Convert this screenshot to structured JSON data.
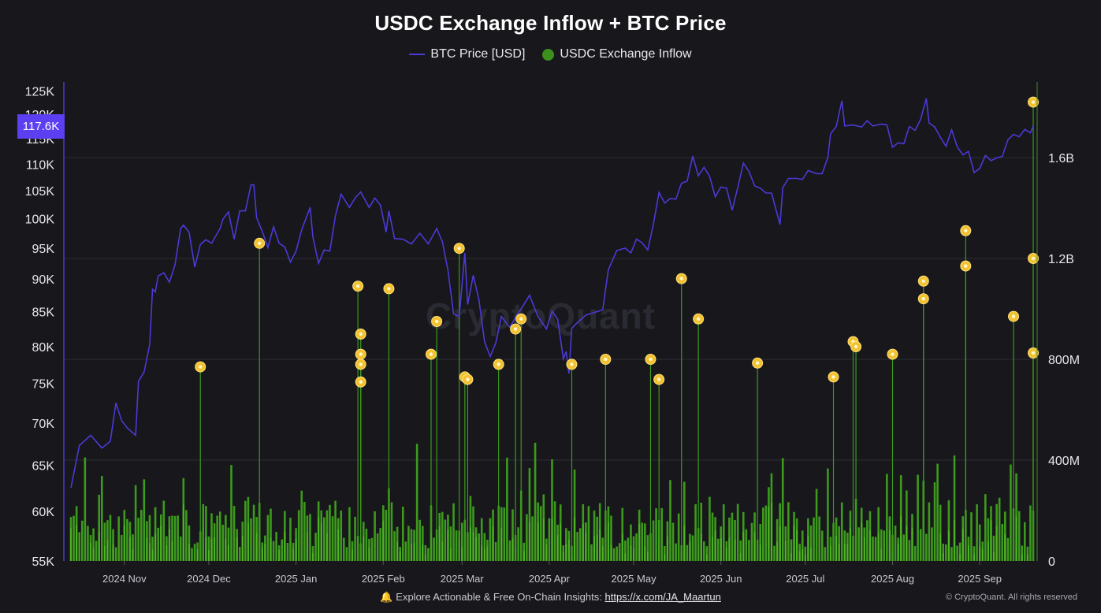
{
  "chart_data": {
    "type": "bar+line",
    "title": "USDC Exchange Inflow + BTC Price",
    "legend": [
      {
        "label": "BTC Price [USD]",
        "marker": "line",
        "color": "#4b3ad6"
      },
      {
        "label": "USDC Exchange Inflow",
        "marker": "dot",
        "color": "#3d8f1e"
      }
    ],
    "left_axis": {
      "ticks": [
        55000,
        60000,
        65000,
        70000,
        75000,
        80000,
        85000,
        90000,
        95000,
        100000,
        105000,
        110000,
        115000,
        120000,
        125000
      ],
      "tick_labels": [
        "55K",
        "60K",
        "65K",
        "70K",
        "75K",
        "80K",
        "85K",
        "90K",
        "95K",
        "100K",
        "105K",
        "110K",
        "115K",
        "120K",
        "125K"
      ],
      "scale": "log",
      "range": [
        55000,
        127000
      ]
    },
    "right_axis": {
      "ticks": [
        0,
        400000000,
        800000000,
        1200000000,
        1600000000
      ],
      "tick_labels": [
        "0",
        "400M",
        "800M",
        "1.2B",
        "1.6B"
      ],
      "range": [
        0,
        1900000000
      ]
    },
    "x_axis": {
      "start": "2024-10-13",
      "end": "2025-09-20",
      "month_ticks": [
        {
          "date": "2024-11-01",
          "label": "2024 Nov"
        },
        {
          "date": "2024-12-01",
          "label": "2024 Dec"
        },
        {
          "date": "2025-01-01",
          "label": "2025 Jan"
        },
        {
          "date": "2025-02-01",
          "label": "2025 Feb"
        },
        {
          "date": "2025-03-01",
          "label": "2025 Mar"
        },
        {
          "date": "2025-04-01",
          "label": "2025 Apr"
        },
        {
          "date": "2025-05-01",
          "label": "2025 May"
        },
        {
          "date": "2025-06-01",
          "label": "2025 Jun"
        },
        {
          "date": "2025-07-01",
          "label": "2025 Jul"
        },
        {
          "date": "2025-08-01",
          "label": "2025 Aug"
        },
        {
          "date": "2025-09-01",
          "label": "2025 Sep"
        }
      ]
    },
    "current_price_label": "117.6K",
    "btc_price": [
      [
        "2024-10-13",
        62500
      ],
      [
        "2024-10-16",
        67300
      ],
      [
        "2024-10-20",
        68500
      ],
      [
        "2024-10-24",
        67000
      ],
      [
        "2024-10-27",
        67800
      ],
      [
        "2024-10-29",
        72500
      ],
      [
        "2024-10-31",
        70300
      ],
      [
        "2024-11-02",
        69400
      ],
      [
        "2024-11-05",
        68500
      ],
      [
        "2024-11-06",
        75300
      ],
      [
        "2024-11-08",
        76500
      ],
      [
        "2024-11-10",
        80300
      ],
      [
        "2024-11-11",
        88400
      ],
      [
        "2024-11-12",
        88000
      ],
      [
        "2024-11-13",
        90500
      ],
      [
        "2024-11-15",
        91000
      ],
      [
        "2024-11-17",
        89500
      ],
      [
        "2024-11-19",
        92300
      ],
      [
        "2024-11-21",
        98300
      ],
      [
        "2024-11-22",
        98900
      ],
      [
        "2024-11-24",
        97700
      ],
      [
        "2024-11-26",
        91900
      ],
      [
        "2024-11-28",
        95600
      ],
      [
        "2024-11-30",
        96400
      ],
      [
        "2024-12-02",
        95800
      ],
      [
        "2024-12-05",
        98300
      ],
      [
        "2024-12-06",
        99900
      ],
      [
        "2024-12-08",
        101200
      ],
      [
        "2024-12-10",
        96500
      ],
      [
        "2024-12-12",
        101400
      ],
      [
        "2024-12-14",
        101400
      ],
      [
        "2024-12-16",
        106100
      ],
      [
        "2024-12-17",
        106100
      ],
      [
        "2024-12-18",
        100200
      ],
      [
        "2024-12-20",
        97800
      ],
      [
        "2024-12-22",
        95100
      ],
      [
        "2024-12-24",
        98600
      ],
      [
        "2024-12-26",
        95800
      ],
      [
        "2024-12-28",
        95200
      ],
      [
        "2024-12-30",
        92700
      ],
      [
        "2025-01-01",
        94500
      ],
      [
        "2025-01-03",
        98100
      ],
      [
        "2025-01-06",
        102000
      ],
      [
        "2025-01-07",
        96900
      ],
      [
        "2025-01-09",
        92500
      ],
      [
        "2025-01-11",
        94700
      ],
      [
        "2025-01-13",
        94500
      ],
      [
        "2025-01-15",
        100500
      ],
      [
        "2025-01-17",
        104400
      ],
      [
        "2025-01-20",
        102000
      ],
      [
        "2025-01-22",
        103700
      ],
      [
        "2025-01-24",
        104800
      ],
      [
        "2025-01-27",
        102000
      ],
      [
        "2025-01-29",
        103700
      ],
      [
        "2025-01-31",
        102400
      ],
      [
        "2025-02-02",
        97700
      ],
      [
        "2025-02-03",
        101400
      ],
      [
        "2025-02-05",
        96600
      ],
      [
        "2025-02-08",
        96500
      ],
      [
        "2025-02-11",
        95700
      ],
      [
        "2025-02-14",
        97500
      ],
      [
        "2025-02-17",
        95700
      ],
      [
        "2025-02-20",
        98300
      ],
      [
        "2025-02-22",
        96100
      ],
      [
        "2025-02-24",
        91400
      ],
      [
        "2025-02-26",
        84700
      ],
      [
        "2025-02-28",
        84300
      ],
      [
        "2025-03-02",
        94200
      ],
      [
        "2025-03-03",
        86100
      ],
      [
        "2025-03-05",
        90600
      ],
      [
        "2025-03-07",
        86800
      ],
      [
        "2025-03-09",
        80700
      ],
      [
        "2025-03-11",
        78600
      ],
      [
        "2025-03-13",
        80500
      ],
      [
        "2025-03-15",
        84300
      ],
      [
        "2025-03-18",
        82700
      ],
      [
        "2025-03-20",
        84200
      ],
      [
        "2025-03-23",
        86100
      ],
      [
        "2025-03-25",
        87500
      ],
      [
        "2025-03-28",
        84300
      ],
      [
        "2025-03-31",
        82500
      ],
      [
        "2025-04-02",
        85100
      ],
      [
        "2025-04-04",
        83900
      ],
      [
        "2025-04-06",
        78300
      ],
      [
        "2025-04-07",
        79300
      ],
      [
        "2025-04-08",
        76300
      ],
      [
        "2025-04-09",
        82600
      ],
      [
        "2025-04-11",
        83400
      ],
      [
        "2025-04-14",
        84500
      ],
      [
        "2025-04-17",
        84900
      ],
      [
        "2025-04-20",
        85300
      ],
      [
        "2025-04-22",
        91500
      ],
      [
        "2025-04-25",
        94600
      ],
      [
        "2025-04-28",
        95000
      ],
      [
        "2025-04-30",
        94200
      ],
      [
        "2025-05-02",
        96500
      ],
      [
        "2025-05-04",
        95900
      ],
      [
        "2025-05-06",
        94700
      ],
      [
        "2025-05-08",
        99000
      ],
      [
        "2025-05-10",
        104700
      ],
      [
        "2025-05-12",
        102800
      ],
      [
        "2025-05-14",
        103600
      ],
      [
        "2025-05-16",
        103500
      ],
      [
        "2025-05-18",
        106400
      ],
      [
        "2025-05-20",
        106800
      ],
      [
        "2025-05-22",
        111600
      ],
      [
        "2025-05-24",
        107800
      ],
      [
        "2025-05-26",
        109400
      ],
      [
        "2025-05-28",
        107700
      ],
      [
        "2025-05-30",
        103900
      ],
      [
        "2025-06-01",
        105700
      ],
      [
        "2025-06-03",
        105500
      ],
      [
        "2025-06-05",
        101500
      ],
      [
        "2025-06-07",
        105600
      ],
      [
        "2025-06-09",
        110200
      ],
      [
        "2025-06-11",
        108600
      ],
      [
        "2025-06-13",
        105900
      ],
      [
        "2025-06-15",
        105500
      ],
      [
        "2025-06-17",
        104600
      ],
      [
        "2025-06-19",
        104600
      ],
      [
        "2025-06-22",
        99000
      ],
      [
        "2025-06-23",
        105600
      ],
      [
        "2025-06-25",
        107300
      ],
      [
        "2025-06-28",
        107300
      ],
      [
        "2025-06-30",
        107100
      ],
      [
        "2025-07-02",
        108800
      ],
      [
        "2025-07-05",
        108200
      ],
      [
        "2025-07-07",
        108200
      ],
      [
        "2025-07-09",
        111300
      ],
      [
        "2025-07-10",
        116000
      ],
      [
        "2025-07-12",
        117500
      ],
      [
        "2025-07-14",
        122900
      ],
      [
        "2025-07-15",
        117600
      ],
      [
        "2025-07-18",
        117800
      ],
      [
        "2025-07-21",
        117400
      ],
      [
        "2025-07-23",
        118700
      ],
      [
        "2025-07-25",
        117600
      ],
      [
        "2025-07-28",
        118000
      ],
      [
        "2025-07-30",
        117800
      ],
      [
        "2025-08-01",
        113300
      ],
      [
        "2025-08-03",
        114200
      ],
      [
        "2025-08-05",
        114000
      ],
      [
        "2025-08-07",
        117500
      ],
      [
        "2025-08-09",
        116700
      ],
      [
        "2025-08-11",
        119000
      ],
      [
        "2025-08-13",
        123400
      ],
      [
        "2025-08-14",
        118200
      ],
      [
        "2025-08-16",
        117400
      ],
      [
        "2025-08-18",
        115300
      ],
      [
        "2025-08-20",
        113500
      ],
      [
        "2025-08-22",
        116800
      ],
      [
        "2025-08-24",
        113400
      ],
      [
        "2025-08-26",
        111800
      ],
      [
        "2025-08-28",
        112500
      ],
      [
        "2025-08-30",
        108400
      ],
      [
        "2025-09-01",
        109200
      ],
      [
        "2025-09-03",
        111700
      ],
      [
        "2025-09-05",
        110700
      ],
      [
        "2025-09-07",
        111200
      ],
      [
        "2025-09-09",
        111500
      ],
      [
        "2025-09-11",
        114800
      ],
      [
        "2025-09-13",
        115900
      ],
      [
        "2025-09-15",
        115400
      ],
      [
        "2025-09-17",
        116900
      ],
      [
        "2025-09-19",
        116200
      ],
      [
        "2025-09-20",
        117600
      ]
    ],
    "usdc_inflow_spikes": [
      [
        "2024-11-28",
        770000000
      ],
      [
        "2024-12-19",
        1260000000
      ],
      [
        "2025-01-23",
        1090000000
      ],
      [
        "2025-01-24",
        900000000
      ],
      [
        "2025-01-24",
        820000000
      ],
      [
        "2025-01-24",
        780000000
      ],
      [
        "2025-01-24",
        710000000
      ],
      [
        "2025-02-03",
        1080000000
      ],
      [
        "2025-02-18",
        820000000
      ],
      [
        "2025-02-20",
        950000000
      ],
      [
        "2025-02-28",
        1240000000
      ],
      [
        "2025-03-02",
        730000000
      ],
      [
        "2025-03-03",
        720000000
      ],
      [
        "2025-03-14",
        780000000
      ],
      [
        "2025-03-20",
        920000000
      ],
      [
        "2025-03-22",
        960000000
      ],
      [
        "2025-04-09",
        780000000
      ],
      [
        "2025-04-21",
        800000000
      ],
      [
        "2025-05-07",
        800000000
      ],
      [
        "2025-05-10",
        720000000
      ],
      [
        "2025-05-18",
        1120000000
      ],
      [
        "2025-05-24",
        960000000
      ],
      [
        "2025-06-14",
        785000000
      ],
      [
        "2025-07-11",
        730000000
      ],
      [
        "2025-07-18",
        870000000
      ],
      [
        "2025-07-19",
        850000000
      ],
      [
        "2025-08-01",
        820000000
      ],
      [
        "2025-08-12",
        1040000000
      ],
      [
        "2025-08-12",
        1110000000
      ],
      [
        "2025-08-27",
        1170000000
      ],
      [
        "2025-08-27",
        1310000000
      ],
      [
        "2025-09-13",
        970000000
      ],
      [
        "2025-09-20",
        1820000000
      ],
      [
        "2025-09-20",
        1200000000
      ],
      [
        "2025-09-20",
        825000000
      ]
    ]
  },
  "footer": {
    "prefix": "Explore Actionable & Free On-Chain Insights: ",
    "link": "https://x.com/JA_Maartun",
    "copyright": "© CryptoQuant. All rights reserved",
    "watermark": "CryptoQuant"
  },
  "colors": {
    "background": "#17171c",
    "price_line": "#4b3ad6",
    "bars": "#3d9a1c",
    "spike_marker": "#f2c230",
    "grid": "#2c2c33",
    "axis_text": "#e6e6ea"
  }
}
